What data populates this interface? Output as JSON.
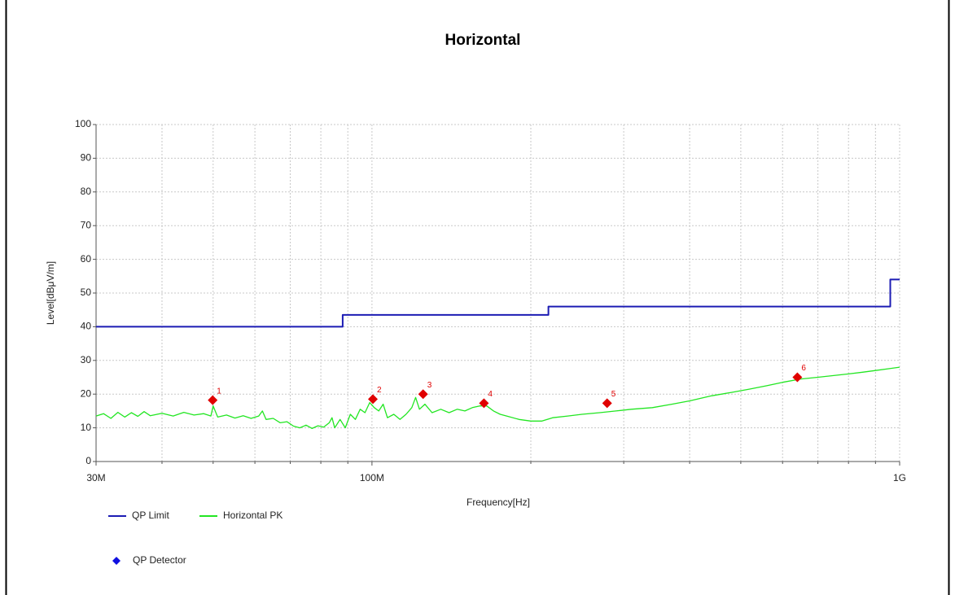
{
  "chart_data": {
    "type": "line",
    "title": "Horizontal",
    "x_label": "Frequency[Hz]",
    "y_label": "Level[dBμV/m]",
    "xscale": "log",
    "xlim": [
      30000000.0,
      1000000000.0
    ],
    "xticks": [
      {
        "value": 30000000.0,
        "label": "30M"
      },
      {
        "value": 100000000.0,
        "label": "100M"
      },
      {
        "value": 1000000000.0,
        "label": "1G"
      }
    ],
    "xminor_ticks": [
      40000000.0,
      50000000.0,
      60000000.0,
      70000000.0,
      80000000.0,
      90000000.0,
      200000000.0,
      300000000.0,
      400000000.0,
      500000000.0,
      600000000.0,
      700000000.0,
      800000000.0,
      900000000.0
    ],
    "ylim": [
      0,
      100
    ],
    "yticks": [
      0,
      10,
      20,
      30,
      40,
      50,
      60,
      70,
      80,
      90,
      100
    ],
    "grid": true,
    "series": [
      {
        "name": "QP Limit",
        "color": "#1c1cb4",
        "style": "line",
        "x": [
          30000000.0,
          88000000.0,
          88000000.0,
          216000000.0,
          216000000.0,
          960000000.0,
          960000000.0,
          1000000000.0
        ],
        "values": [
          40,
          40,
          43.5,
          43.5,
          46,
          46,
          54,
          54
        ]
      },
      {
        "name": "Horizontal PK",
        "color": "#22e622",
        "style": "line",
        "x": [
          30000000.0,
          31000000.0,
          32000000.0,
          33000000.0,
          34000000.0,
          35000000.0,
          36000000.0,
          37000000.0,
          38000000.0,
          40000000.0,
          42000000.0,
          44000000.0,
          46000000.0,
          48000000.0,
          49500000.0,
          50000000.0,
          51000000.0,
          53000000.0,
          55000000.0,
          57000000.0,
          59000000.0,
          61000000.0,
          62000000.0,
          63000000.0,
          65000000.0,
          67000000.0,
          69000000.0,
          71000000.0,
          73000000.0,
          75000000.0,
          77000000.0,
          79000000.0,
          81000000.0,
          83000000.0,
          84000000.0,
          85000000.0,
          87000000.0,
          89000000.0,
          91000000.0,
          93000000.0,
          95000000.0,
          97000000.0,
          99000000.0,
          101000000.0,
          103000000.0,
          105000000.0,
          107000000.0,
          110000000.0,
          113000000.0,
          116000000.0,
          119000000.0,
          121000000.0,
          123000000.0,
          126000000.0,
          130000000.0,
          135000000.0,
          140000000.0,
          145000000.0,
          150000000.0,
          155000000.0,
          160000000.0,
          165000000.0,
          170000000.0,
          175000000.0,
          180000000.0,
          190000000.0,
          200000000.0,
          210000000.0,
          220000000.0,
          235000000.0,
          250000000.0,
          270000000.0,
          290000000.0,
          310000000.0,
          340000000.0,
          370000000.0,
          400000000.0,
          440000000.0,
          480000000.0,
          520000000.0,
          560000000.0,
          600000000.0,
          650000000.0,
          700000000.0,
          750000000.0,
          800000000.0,
          850000000.0,
          900000000.0,
          950000000.0,
          1000000000.0
        ],
        "values": [
          13.5,
          14.2,
          12.8,
          14.6,
          13.2,
          14.5,
          13.4,
          14.8,
          13.6,
          14.3,
          13.5,
          14.6,
          13.8,
          14.2,
          13.5,
          16.5,
          13.2,
          13.8,
          12.9,
          13.6,
          12.8,
          13.5,
          15,
          12.5,
          12.8,
          11.5,
          11.8,
          10.5,
          10,
          10.8,
          9.8,
          10.6,
          10.2,
          11.5,
          13,
          10,
          12.5,
          10,
          14,
          12.5,
          15.5,
          14.5,
          17.5,
          16,
          15,
          17,
          13,
          14,
          12.5,
          14,
          16,
          19,
          15.5,
          17,
          14.5,
          15.5,
          14.5,
          15.5,
          15,
          16,
          16.5,
          16.5,
          15,
          14,
          13.5,
          12.5,
          12,
          12,
          13,
          13.5,
          14,
          14.5,
          15,
          15.5,
          16,
          17,
          18,
          19.5,
          20.5,
          21.5,
          22.5,
          23.5,
          24.5,
          25,
          25.5,
          26,
          26.5,
          27,
          27.5,
          28
        ]
      },
      {
        "name": "QP Detector",
        "color": "#e00000",
        "legend_color": "#1010e0",
        "style": "marker",
        "x": [
          49900000.0,
          100400000.0,
          125000000.0,
          163000000.0,
          279000000.0,
          640000000.0
        ],
        "values": [
          18.2,
          18.5,
          20,
          17.3,
          17.3,
          25
        ],
        "labels": [
          "1",
          "2",
          "3",
          "4",
          "5",
          "6"
        ]
      }
    ]
  }
}
